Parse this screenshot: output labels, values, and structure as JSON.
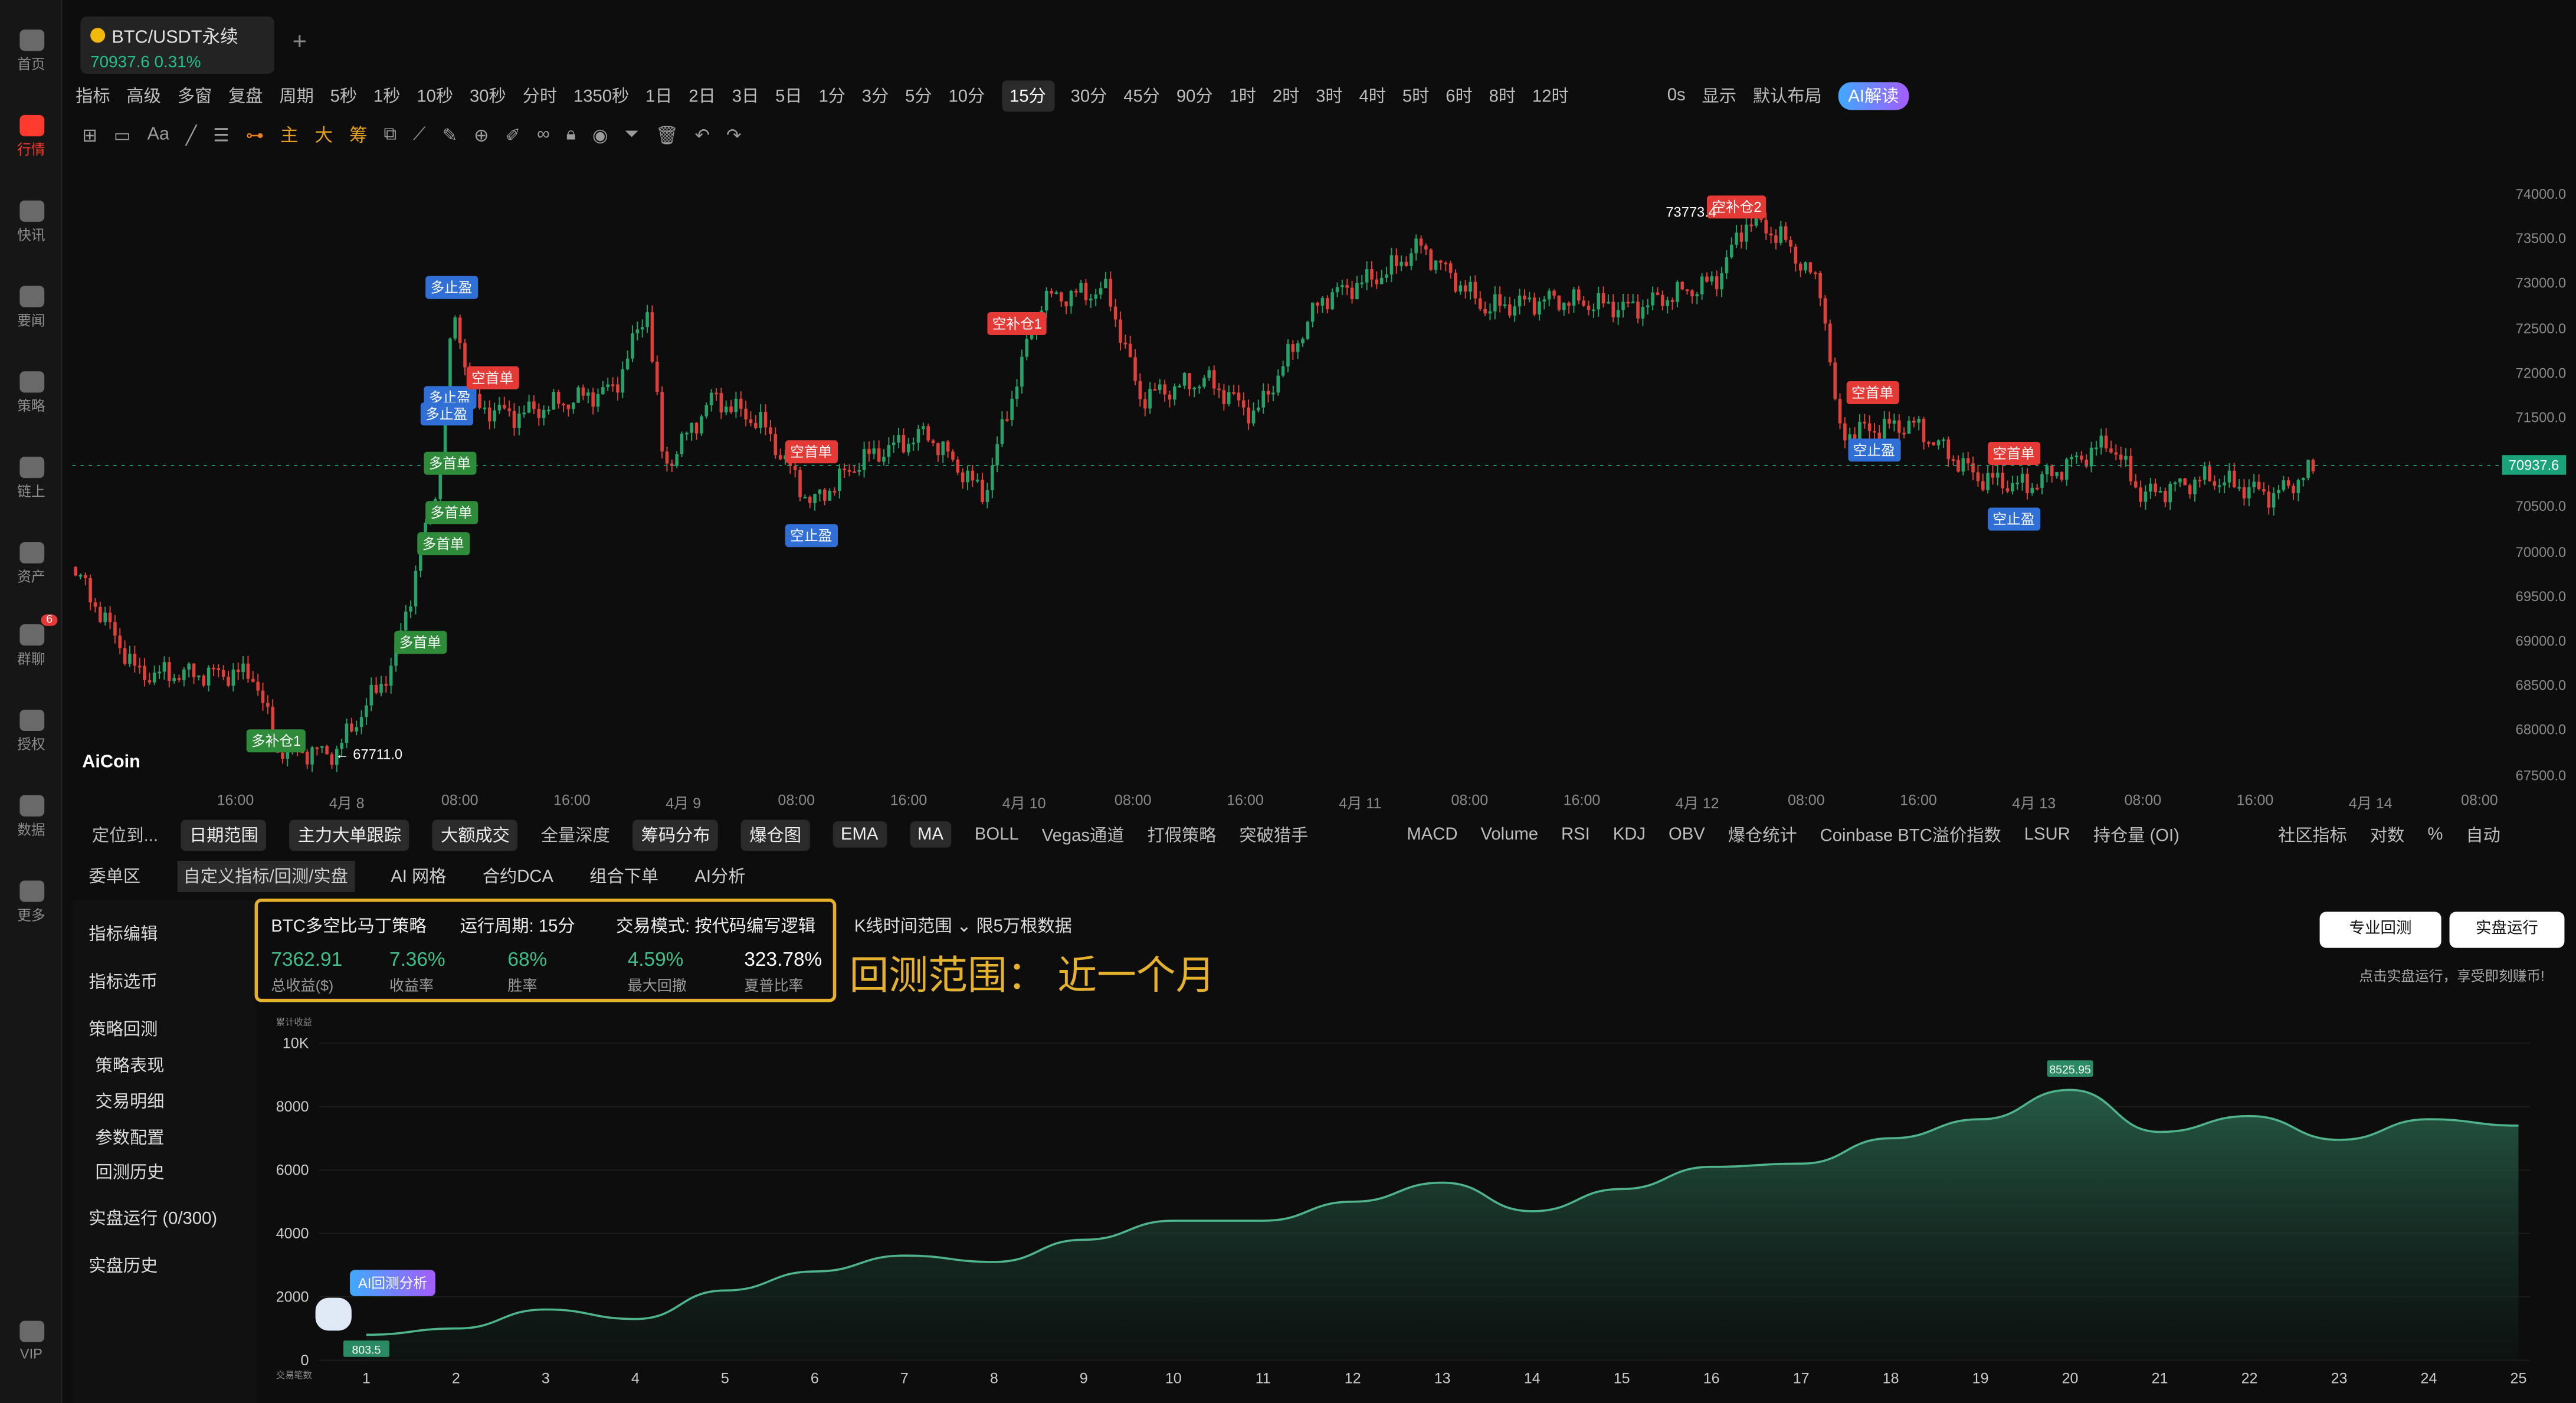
{
  "nav": [
    {
      "label": "首页",
      "icon": "logo-icon"
    },
    {
      "label": "行情",
      "icon": "chart-icon"
    },
    {
      "label": "快讯",
      "icon": "news-icon"
    },
    {
      "label": "要闻",
      "icon": "doc-icon"
    },
    {
      "label": "策略",
      "icon": "robot-icon"
    },
    {
      "label": "链上",
      "icon": "chain-icon"
    },
    {
      "label": "资产",
      "icon": "wallet-icon"
    },
    {
      "label": "群聊",
      "icon": "chat-icon",
      "badge": "6"
    },
    {
      "label": "授权",
      "icon": "key-icon"
    },
    {
      "label": "数据",
      "icon": "data-icon"
    },
    {
      "label": "更多",
      "icon": "grid-icon"
    },
    {
      "label": "VIP",
      "icon": "vip-icon"
    }
  ],
  "tab": {
    "symbol": "BTC/USDT永续",
    "price": "70937.6",
    "change": "0.31%",
    "add": "+"
  },
  "toolbar": {
    "left": [
      "指标",
      "高级",
      "多窗",
      "复盘",
      "周期"
    ],
    "periods": [
      "5秒",
      "1秒",
      "10秒",
      "30秒",
      "分时",
      "1350秒",
      "1日",
      "2日",
      "3日",
      "5日",
      "1分",
      "3分",
      "5分",
      "10分",
      "15分",
      "30分",
      "45分",
      "90分",
      "1时",
      "2时",
      "3时",
      "4时",
      "5时",
      "6时",
      "8时",
      "12时"
    ],
    "selected": "15分",
    "right": [
      "0s",
      "显示",
      "默认布局",
      "AI解读"
    ]
  },
  "price_axis": [
    "74000.0",
    "73500.0",
    "73000.0",
    "72500.0",
    "72000.0",
    "71500.0",
    "71000.0",
    "70500.0",
    "70000.0",
    "69500.0",
    "69000.0",
    "68500.0",
    "68000.0",
    "67500.0"
  ],
  "last_price": "70937.6",
  "time_axis": [
    "16:00",
    "4月 8",
    "08:00",
    "16:00",
    "4月 9",
    "08:00",
    "16:00",
    "4月 10",
    "08:00",
    "16:00",
    "4月 11",
    "08:00",
    "16:00",
    "4月 12",
    "08:00",
    "16:00",
    "4月 13",
    "08:00",
    "16:00",
    "4月 14",
    "08:00"
  ],
  "markers": {
    "high": "73773.4",
    "low": "67711.0",
    "items": [
      "多止盈",
      "多止盈",
      "多止盈",
      "空首单",
      "多首单",
      "多首单",
      "多首单",
      "多首单",
      "多补仓1",
      "空补仓1",
      "空首单",
      "空止盈",
      "空补仓2",
      "空首单",
      "空止盈",
      "空首单",
      "空止盈"
    ]
  },
  "logo": "AiCoin",
  "indicators": [
    "定位到...",
    "日期范围",
    "主力大单跟踪",
    "大额成交",
    "全量深度",
    "筹码分布",
    "爆仓图",
    "EMA",
    "MA",
    "BOLL",
    "Vegas通道",
    "打假策略",
    "突破猎手",
    "MACD",
    "Volume",
    "RSI",
    "KDJ",
    "OBV",
    "爆仓统计",
    "Coinbase BTC溢价指数",
    "LSUR",
    "持仓量 (OI)",
    "社区指标",
    "对数",
    "%",
    "自动"
  ],
  "panel_tabs": [
    "委单区",
    "自定义指标/回测/实盘",
    "AI 网格",
    "合约DCA",
    "组合下单",
    "AI分析"
  ],
  "sidebar": [
    "指标编辑",
    "指标选币",
    "策略回测",
    "策略表现",
    "交易明细",
    "参数配置",
    "回测历史",
    "实盘运行 (0/300)",
    "实盘历史"
  ],
  "strategy": {
    "name": "BTC多空比马丁策略",
    "period": "运行周期: 15分",
    "mode": "交易模式: 按代码编写逻辑",
    "stats": [
      {
        "v": "7362.91",
        "l": "总收益($)"
      },
      {
        "v": "7.36%",
        "l": "收益率"
      },
      {
        "v": "68%",
        "l": "胜率"
      },
      {
        "v": "4.59%",
        "l": "最大回撤"
      },
      {
        "v": "323.78%",
        "l": "夏普比率"
      }
    ]
  },
  "kline_range": "K线时间范围",
  "limit": "限5万根数据",
  "annotation": "回测范围： 近一个月",
  "buttons": {
    "pro": "专业回测",
    "live": "实盘运行",
    "hint": "点击实盘运行，享受即刻赚币!"
  },
  "ai_badge": "AI回测分析",
  "chart_data": {
    "type": "area",
    "ylabel": "累计收益",
    "xlabel": "交易笔数",
    "ylim": [
      0,
      10000
    ],
    "yticks": [
      "10K",
      "8000",
      "6000",
      "4000",
      "2000",
      "0"
    ],
    "x": [
      1,
      2,
      3,
      4,
      5,
      6,
      7,
      8,
      9,
      10,
      11,
      12,
      13,
      14,
      15,
      16,
      17,
      18,
      19,
      20,
      21,
      22,
      23,
      24,
      25
    ],
    "values": [
      803.5,
      1000,
      1600,
      1300,
      2200,
      2800,
      3300,
      3100,
      3800,
      4400,
      4400,
      5000,
      5600,
      4700,
      5400,
      6100,
      6200,
      7000,
      7600,
      8525.95,
      7200,
      7700,
      6950,
      7600,
      7400
    ],
    "labels": {
      "start": "803.5",
      "peak": "8525.95"
    },
    "color": "#4fb38b"
  }
}
